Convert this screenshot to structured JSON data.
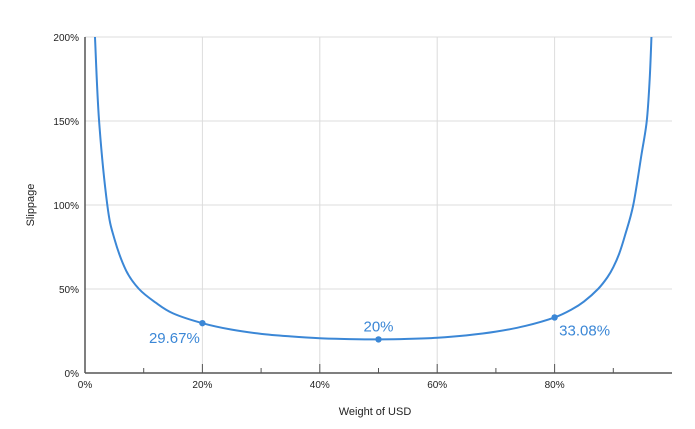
{
  "chart_data": {
    "type": "line",
    "title": "",
    "xlabel": "Weight of USD",
    "ylabel": "Slippage",
    "xlim": [
      0,
      100
    ],
    "ylim": [
      0,
      200
    ],
    "x_ticks": [
      "0%",
      "20%",
      "40%",
      "60%",
      "80%"
    ],
    "x_tick_values": [
      0,
      20,
      40,
      60,
      80
    ],
    "x_minor_ticks": [
      10,
      30,
      50,
      70,
      90
    ],
    "y_ticks": [
      "0%",
      "50%",
      "100%",
      "150%",
      "200%"
    ],
    "y_tick_values": [
      0,
      50,
      100,
      150,
      200
    ],
    "grid": true,
    "color": "#3b87d6",
    "series": [
      {
        "points": [
          [
            1.7,
            200
          ],
          [
            2.4,
            150
          ],
          [
            3.8,
            100
          ],
          [
            5,
            80
          ],
          [
            7,
            61
          ],
          [
            9.2,
            50
          ],
          [
            12,
            42
          ],
          [
            15,
            35.5
          ],
          [
            20,
            29.67
          ],
          [
            25,
            25.8
          ],
          [
            30,
            23.3
          ],
          [
            35,
            21.8
          ],
          [
            40,
            20.7
          ],
          [
            45,
            20.2
          ],
          [
            50,
            20
          ],
          [
            55,
            20.3
          ],
          [
            60,
            21
          ],
          [
            65,
            22.4
          ],
          [
            70,
            24.6
          ],
          [
            75,
            28
          ],
          [
            80,
            33.08
          ],
          [
            83,
            38
          ],
          [
            85,
            42.5
          ],
          [
            87.4,
            50
          ],
          [
            89,
            57
          ],
          [
            90,
            63
          ],
          [
            91,
            71
          ],
          [
            92,
            82
          ],
          [
            93.4,
            100
          ],
          [
            94.8,
            130
          ],
          [
            95.7,
            150
          ],
          [
            96.2,
            175
          ],
          [
            96.5,
            200
          ]
        ]
      }
    ],
    "annotations": [
      {
        "x": 20,
        "y": 29.67,
        "label": "29.67%"
      },
      {
        "x": 50,
        "y": 20,
        "label": "20%"
      },
      {
        "x": 80,
        "y": 33.08,
        "label": "33.08%"
      }
    ]
  }
}
